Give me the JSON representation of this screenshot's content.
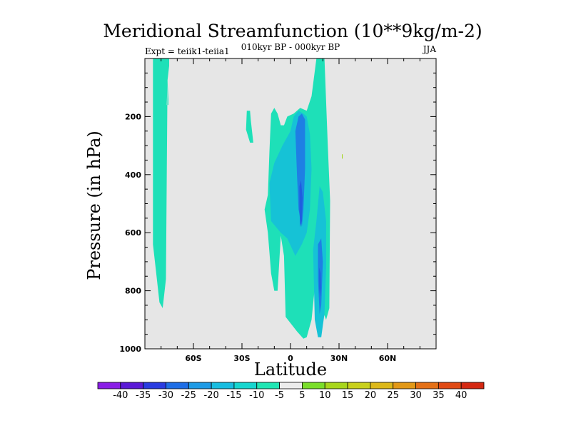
{
  "chart_data": {
    "type": "filled-contour",
    "title": "Meridional Streamfunction (10**9kg/m-2)",
    "left_label": "Expt = teiik1-teiia1",
    "center_label": "010kyr BP - 000kyr BP",
    "right_label": "JJA",
    "xlabel": "Latitude",
    "ylabel": "Pressure (in hPa)",
    "xlim": [
      -90,
      90
    ],
    "ylim": [
      1000,
      0
    ],
    "x_ticks": [
      {
        "value": -60,
        "label": "60S"
      },
      {
        "value": -30,
        "label": "30S"
      },
      {
        "value": 0,
        "label": "0"
      },
      {
        "value": 30,
        "label": "30N"
      },
      {
        "value": 60,
        "label": "60N"
      }
    ],
    "y_ticks": [
      {
        "value": 200,
        "label": "200"
      },
      {
        "value": 400,
        "label": "400"
      },
      {
        "value": 600,
        "label": "600"
      },
      {
        "value": 800,
        "label": "800"
      },
      {
        "value": 1000,
        "label": "1000"
      }
    ],
    "background_fill": "#e6e6e6",
    "levels": [
      -40,
      -35,
      -30,
      -25,
      -20,
      -15,
      -10,
      -5,
      5,
      10,
      15,
      20,
      25,
      30,
      35,
      40
    ],
    "colorbar_colors": [
      "#8a1ee6",
      "#5a1ad6",
      "#2a3ce0",
      "#1e6ee6",
      "#1e9be6",
      "#18bde0",
      "#16d6cf",
      "#20e6b4",
      "#ececec",
      "#7ade2a",
      "#a8d61c",
      "#c8d01c",
      "#dcb81a",
      "#e29816",
      "#e47016",
      "#e04a14",
      "#d42812"
    ],
    "regions": [
      {
        "name": "high-latitude band",
        "level": -10,
        "color": "#1ee0b8",
        "points": [
          [
            -85,
            0
          ],
          [
            -75,
            0
          ],
          [
            -75,
            25
          ],
          [
            -76,
            75
          ],
          [
            -76.5,
            160
          ],
          [
            -75.5,
            160
          ],
          [
            -75.5,
            140
          ],
          [
            -76,
            75
          ],
          [
            -77,
            760
          ],
          [
            -79,
            860
          ],
          [
            -81,
            840
          ],
          [
            -83,
            740
          ],
          [
            -85,
            640
          ]
        ]
      },
      {
        "name": "upper-level patch",
        "level": -10,
        "color": "#1ee0b8",
        "points": [
          [
            -27,
            180
          ],
          [
            -25,
            180
          ],
          [
            -24.5,
            215
          ],
          [
            -23,
            290
          ],
          [
            -25,
            290
          ],
          [
            -27.5,
            245
          ]
        ]
      },
      {
        "name": "main cell outer",
        "level": -10,
        "color": "#1ee0b8",
        "points": [
          [
            -16,
            520
          ],
          [
            -14,
            470
          ],
          [
            -13,
            320
          ],
          [
            -12,
            190
          ],
          [
            -10,
            170
          ],
          [
            -8,
            190
          ],
          [
            -6,
            230
          ],
          [
            -4,
            230
          ],
          [
            -2,
            200
          ],
          [
            2,
            190
          ],
          [
            6,
            170
          ],
          [
            10,
            180
          ],
          [
            13,
            130
          ],
          [
            16,
            0
          ],
          [
            21,
            0
          ],
          [
            23,
            290
          ],
          [
            24.5,
            490
          ],
          [
            24,
            860
          ],
          [
            22,
            900
          ],
          [
            20,
            870
          ],
          [
            19,
            640
          ],
          [
            17,
            730
          ],
          [
            15,
            790
          ],
          [
            13,
            900
          ],
          [
            10,
            960
          ],
          [
            8,
            965
          ],
          [
            4,
            940
          ],
          [
            -3,
            890
          ],
          [
            -4,
            680
          ],
          [
            -6,
            610
          ],
          [
            -8,
            800
          ],
          [
            -10,
            800
          ],
          [
            -12,
            740
          ],
          [
            -14,
            600
          ]
        ]
      },
      {
        "name": "cell core west",
        "level": -15,
        "color": "#16c2d6",
        "points": [
          [
            -13,
            430
          ],
          [
            -10,
            360
          ],
          [
            -5,
            300
          ],
          [
            0,
            250
          ],
          [
            2,
            200
          ],
          [
            5,
            180
          ],
          [
            8,
            190
          ],
          [
            10,
            200
          ],
          [
            12,
            260
          ],
          [
            13,
            380
          ],
          [
            12,
            520
          ],
          [
            10,
            600
          ],
          [
            7,
            640
          ],
          [
            3,
            680
          ],
          [
            -2,
            620
          ],
          [
            -6,
            600
          ],
          [
            -12,
            560
          ]
        ]
      },
      {
        "name": "cell core east",
        "level": -15,
        "color": "#16c2d6",
        "points": [
          [
            14,
            660
          ],
          [
            16,
            560
          ],
          [
            18,
            440
          ],
          [
            20,
            460
          ],
          [
            22,
            560
          ],
          [
            22,
            720
          ],
          [
            21,
            880
          ],
          [
            20,
            920
          ],
          [
            19,
            960
          ],
          [
            17,
            960
          ],
          [
            15,
            900
          ]
        ]
      },
      {
        "name": "deep core west",
        "level": -25,
        "color": "#1e7fe4",
        "points": [
          [
            3,
            250
          ],
          [
            5,
            200
          ],
          [
            7,
            190
          ],
          [
            9,
            210
          ],
          [
            9,
            380
          ],
          [
            8,
            520
          ],
          [
            7,
            580
          ],
          [
            5,
            520
          ],
          [
            4,
            400
          ]
        ]
      },
      {
        "name": "deep core east",
        "level": -25,
        "color": "#1e7fe4",
        "points": [
          [
            17,
            640
          ],
          [
            19,
            620
          ],
          [
            20,
            700
          ],
          [
            19,
            850
          ],
          [
            18,
            880
          ],
          [
            17,
            760
          ]
        ]
      },
      {
        "name": "minimum west",
        "level": -30,
        "color": "#1f5ee0",
        "points": [
          [
            5.5,
            440
          ],
          [
            6.5,
            420
          ],
          [
            7.5,
            480
          ],
          [
            7,
            560
          ],
          [
            6,
            580
          ],
          [
            5.5,
            520
          ]
        ]
      },
      {
        "name": "minimum east",
        "level": -30,
        "color": "#1f5ee0",
        "points": [
          [
            17.8,
            720
          ],
          [
            18.6,
            740
          ],
          [
            18.8,
            790
          ],
          [
            18.2,
            820
          ],
          [
            17.8,
            790
          ]
        ]
      },
      {
        "name": "positive speck",
        "level": 5,
        "color": "#9ad400",
        "points": [
          [
            31.8,
            330
          ],
          [
            32.2,
            330
          ],
          [
            32.2,
            345
          ],
          [
            31.8,
            345
          ]
        ]
      }
    ]
  }
}
